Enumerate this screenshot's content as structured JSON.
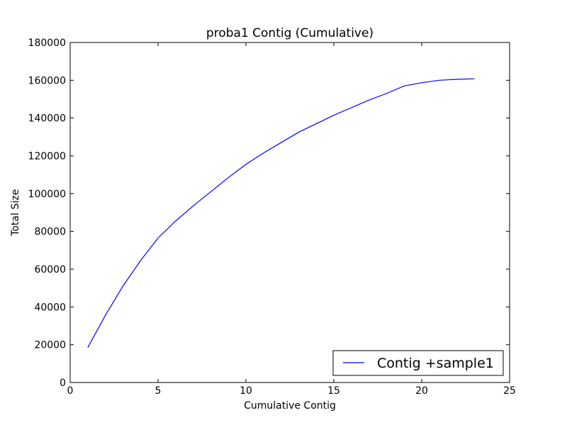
{
  "chart_data": {
    "type": "line",
    "title": "proba1 Contig (Cumulative)",
    "xlabel": "Cumulative Contig",
    "ylabel": "Total Size",
    "xlim": [
      0,
      25
    ],
    "ylim": [
      0,
      180000
    ],
    "xticks": [
      0,
      5,
      10,
      15,
      20,
      25
    ],
    "yticks": [
      0,
      20000,
      40000,
      60000,
      80000,
      100000,
      120000,
      140000,
      160000,
      180000
    ],
    "grid": false,
    "legend_position": "lower-right",
    "series": [
      {
        "name": "Contig +sample1",
        "color": "#0000ff",
        "x": [
          1,
          2,
          3,
          4,
          5,
          6,
          7,
          8,
          9,
          10,
          11,
          12,
          13,
          14,
          15,
          16,
          17,
          18,
          19,
          20,
          21,
          22,
          23
        ],
        "y": [
          18500,
          35500,
          51000,
          64500,
          76500,
          85500,
          93500,
          101000,
          108500,
          115500,
          121500,
          127000,
          132500,
          137000,
          141500,
          145500,
          149500,
          153000,
          157000,
          158700,
          160000,
          160500,
          160800
        ]
      }
    ]
  }
}
